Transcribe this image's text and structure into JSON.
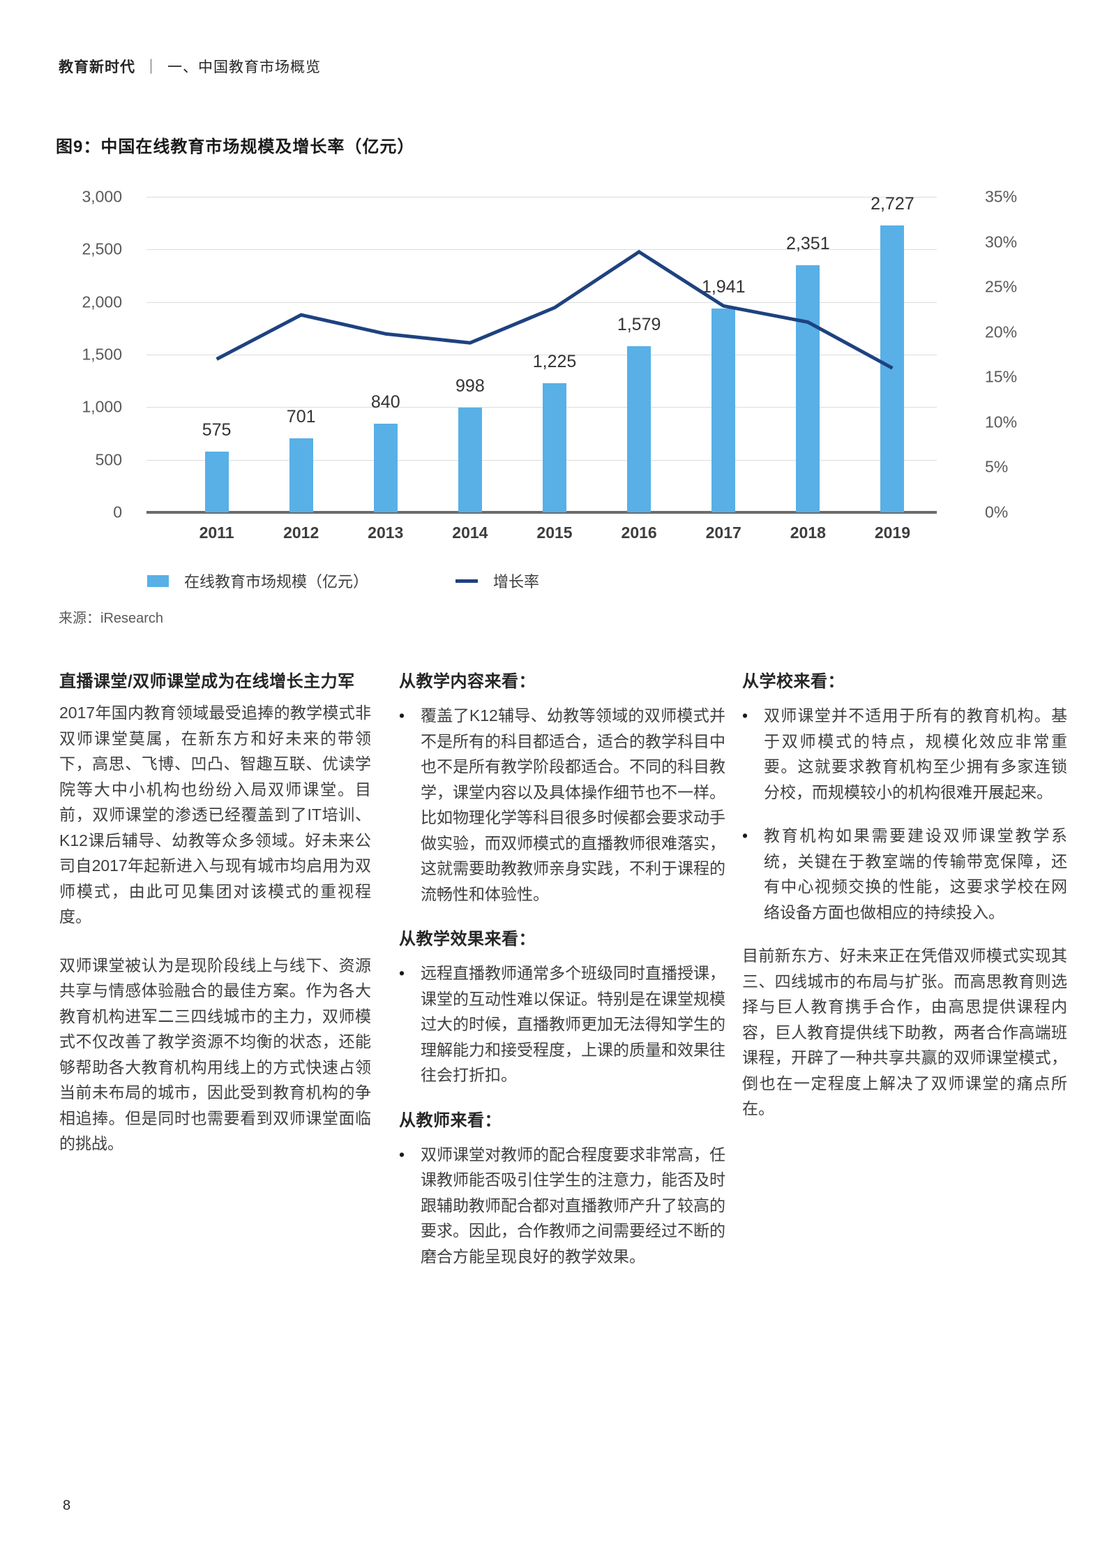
{
  "page": {
    "number": "8"
  },
  "header": {
    "brand": "教育新时代",
    "separator": "｜",
    "section": "一、中国教育市场概览"
  },
  "chart": {
    "title": "图9：中国在线教育市场规模及增长率（亿元）",
    "source": "来源：iResearch"
  },
  "chart_data": {
    "type": "bar",
    "title": "图9：中国在线教育市场规模及增长率（亿元）",
    "categories": [
      "2011",
      "2012",
      "2013",
      "2014",
      "2015",
      "2016",
      "2017",
      "2018",
      "2019"
    ],
    "series": [
      {
        "name": "在线教育市场规模（亿元）",
        "type": "bar",
        "axis": "left",
        "color": "#58B0E6",
        "values": [
          575,
          701,
          840,
          998,
          1225,
          1579,
          1941,
          2351,
          2727
        ],
        "labels": [
          "575",
          "701",
          "840",
          "998",
          "1,225",
          "1,579",
          "1,941",
          "2,351",
          "2,727"
        ]
      },
      {
        "name": "增长率",
        "type": "line",
        "axis": "right",
        "color": "#1E4280",
        "values": [
          17.0,
          21.9,
          19.8,
          18.8,
          22.7,
          28.9,
          22.9,
          21.1,
          16.0
        ]
      }
    ],
    "left_axis": {
      "ticks": [
        "3,000",
        "2,500",
        "2,000",
        "1,500",
        "1,000",
        "500",
        "0"
      ],
      "values": [
        3000,
        2500,
        2000,
        1500,
        1000,
        500,
        0
      ],
      "max": 3000
    },
    "right_axis": {
      "ticks": [
        "35%",
        "30%",
        "25%",
        "20%",
        "15%",
        "10%",
        "5%",
        "0%"
      ],
      "values": [
        35,
        30,
        25,
        20,
        15,
        10,
        5,
        0
      ],
      "max": 35
    },
    "grid": true,
    "legend_position": "bottom",
    "grid_color": "#DCDCDC",
    "axis_line_color": "#6B6B6B"
  },
  "columns": {
    "col1": {
      "heading": "直播课堂/双师课堂成为在线增长主力军",
      "p1": "2017年国内教育领域最受追捧的教学模式非双师课堂莫属，在新东方和好未来的带领下，高思、飞博、凹凸、智趣互联、优读学院等大中小机构也纷纷入局双师课堂。目前，双师课堂的渗透已经覆盖到了IT培训、K12课后辅导、幼教等众多领域。好未来公司自2017年起新进入与现有城市均启用为双师模式，由此可见集团对该模式的重视程度。",
      "p2": "双师课堂被认为是现阶段线上与线下、资源共享与情感体验融合的最佳方案。作为各大教育机构进军二三四线城市的主力，双师模式不仅改善了教学资源不均衡的状态，还能够帮助各大教育机构用线上的方式快速占领当前未布局的城市，因此受到教育机构的争相追捧。但是同时也需要看到双师课堂面临的挑战。"
    },
    "col2": {
      "sections": [
        {
          "heading": "从教学内容来看：",
          "bullet": "覆盖了K12辅导、幼教等领域的双师模式并不是所有的科目都适合，适合的教学科目中也不是所有教学阶段都适合。不同的科目教学，课堂内容以及具体操作细节也不一样。比如物理化学等科目很多时候都会要求动手做实验，而双师模式的直播教师很难落实，这就需要助教教师亲身实践，不利于课程的流畅性和体验性。"
        },
        {
          "heading": "从教学效果来看：",
          "bullet": "远程直播教师通常多个班级同时直播授课，课堂的互动性难以保证。特别是在课堂规模过大的时候，直播教师更加无法得知学生的理解能力和接受程度，上课的质量和效果往往会打折扣。"
        },
        {
          "heading": "从教师来看：",
          "bullet": "双师课堂对教师的配合程度要求非常高，任课教师能否吸引住学生的注意力，能否及时跟辅助教师配合都对直播教师产升了较高的要求。因此，合作教师之间需要经过不断的磨合方能呈现良好的教学效果。"
        }
      ]
    },
    "col3": {
      "heading": "从学校来看：",
      "bullets": [
        "双师课堂并不适用于所有的教育机构。基于双师模式的特点，规模化效应非常重要。这就要求教育机构至少拥有多家连锁分校，而规模较小的机构很难开展起来。",
        "教育机构如果需要建设双师课堂教学系统，关键在于教室端的传输带宽保障，还有中心视频交换的性能，这要求学校在网络设备方面也做相应的持续投入。"
      ],
      "p": "目前新东方、好未来正在凭借双师模式实现其三、四线城市的布局与扩张。而高思教育则选择与巨人教育携手合作，由高思提供课程内容，巨人教育提供线下助教，两者合作高端班课程，开辟了一种共享共赢的双师课堂模式，倒也在一定程度上解决了双师课堂的痛点所在。"
    }
  }
}
